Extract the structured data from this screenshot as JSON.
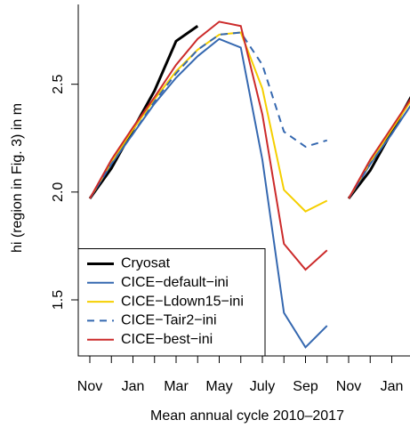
{
  "chart_data": {
    "type": "line",
    "xlabel": "Mean annual cycle 2010–2017",
    "ylabel": "hi (region in Fig. 3) in m",
    "categories": [
      "Nov",
      null,
      "Jan",
      null,
      "Mar",
      null,
      "May",
      null,
      "July",
      null,
      "Sep",
      null,
      "Nov",
      null,
      "Jan",
      null
    ],
    "breaks": [
      12
    ],
    "ylim": [
      1.24,
      2.87
    ],
    "yticks": [
      1.5,
      {
        "value": 2,
        "label": "2.0"
      },
      2.5
    ],
    "legend": "bottomleft",
    "series": [
      {
        "name": "Cryosat",
        "color": "#000000",
        "width": 3,
        "linestyle": "solid",
        "values": [
          1.97,
          2.11,
          2.29,
          2.47,
          2.7,
          2.77,
          null,
          null,
          null,
          null,
          null,
          null,
          1.97,
          2.1,
          2.28,
          2.46
        ]
      },
      {
        "name": "CICE−default−ini",
        "color": "#3568b0",
        "width": 2,
        "linestyle": "solid",
        "values": [
          1.97,
          2.13,
          2.27,
          2.41,
          2.53,
          2.63,
          2.71,
          2.67,
          2.15,
          1.44,
          1.28,
          1.38,
          1.97,
          2.13,
          2.27,
          2.42
        ]
      },
      {
        "name": "CICE−Ldown15−ini",
        "color": "#f5cf00",
        "width": 2,
        "linestyle": "solid",
        "values": [
          1.97,
          2.14,
          2.29,
          2.43,
          2.56,
          2.66,
          2.73,
          2.74,
          2.48,
          2.01,
          1.91,
          1.96,
          1.97,
          2.14,
          2.29,
          2.44
        ]
      },
      {
        "name": "CICE−Tair2−ini",
        "color": "#3568b0",
        "width": 2,
        "linestyle": "dashed",
        "values": [
          1.97,
          2.13,
          2.27,
          2.42,
          2.55,
          2.66,
          2.73,
          2.74,
          2.59,
          2.28,
          2.21,
          2.24,
          1.97,
          2.13,
          2.27,
          2.42
        ]
      },
      {
        "name": "CICE−best−ini",
        "color": "#cc2b2b",
        "width": 2,
        "linestyle": "solid",
        "values": [
          1.97,
          2.15,
          2.3,
          2.44,
          2.59,
          2.71,
          2.79,
          2.77,
          2.36,
          1.76,
          1.64,
          1.73,
          1.97,
          2.15,
          2.3,
          2.45
        ]
      }
    ]
  }
}
